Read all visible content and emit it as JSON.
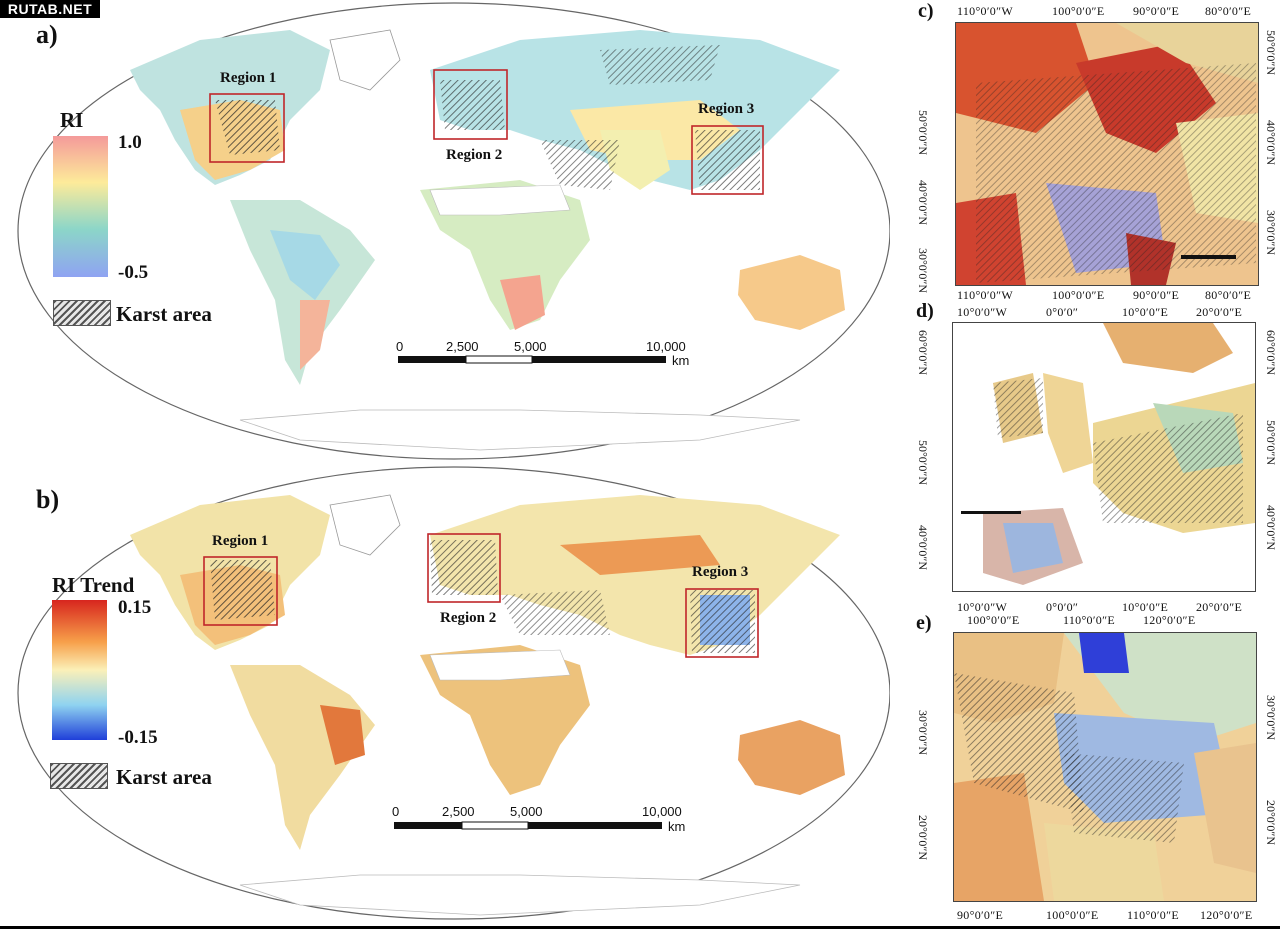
{
  "watermark": "RUTAB.NET",
  "panels": {
    "a": {
      "letter": "a)",
      "regions": [
        "Region 1",
        "Region 2",
        "Region 3"
      ],
      "legend": {
        "title": "RI",
        "max": "1.0",
        "min": "-0.5",
        "colors": [
          "#f49a9a",
          "#fdeb9a",
          "#8cd6c8",
          "#8fa3f2"
        ]
      },
      "karst_label": "Karst area",
      "scale": {
        "ticks": [
          "0",
          "2,500",
          "5,000",
          "10,000"
        ],
        "unit": "km"
      }
    },
    "b": {
      "letter": "b)",
      "regions": [
        "Region 1",
        "Region 2",
        "Region 3"
      ],
      "legend": {
        "title": "RI Trend",
        "max": "0.15",
        "min": "-0.15",
        "colors": [
          "#d7261e",
          "#f7a04a",
          "#fbf0b8",
          "#8fd3f0",
          "#1f3fd9"
        ]
      },
      "karst_label": "Karst area",
      "scale": {
        "ticks": [
          "0",
          "2,500",
          "5,000",
          "10,000"
        ],
        "unit": "km"
      }
    },
    "c": {
      "letter": "c)",
      "top_lon": [
        "110°0′0″W",
        "100°0′0″E",
        "90°0′0″E",
        "80°0′0″E"
      ],
      "bottom_lon": [
        "110°0′0″W",
        "100°0′0″E",
        "90°0′0″E",
        "80°0′0″E"
      ],
      "left_lat": [
        "50°0′0″N",
        "40°0′0″N",
        "30°0′0″N"
      ],
      "right_lat": [
        "50°0′0″N",
        "40°0′0″N",
        "30°0′0″N"
      ]
    },
    "d": {
      "letter": "d)",
      "top_lon": [
        "10°0′0″W",
        "0°0′0″",
        "10°0′0″E",
        "20°0′0″E"
      ],
      "bottom_lon": [
        "10°0′0″W",
        "0°0′0″",
        "10°0′0″E",
        "20°0′0″E"
      ],
      "left_lat": [
        "60°0′0″N",
        "50°0′0″N",
        "40°0′0″N"
      ],
      "right_lat": [
        "60°0′0″N",
        "50°0′0″N",
        "40°0′0″N"
      ]
    },
    "e": {
      "letter": "e)",
      "top_lon": [
        "100°0′0″E",
        "110°0′0″E",
        "120°0′0″E"
      ],
      "bottom_lon": [
        "90°0′0″E",
        "100°0′0″E",
        "110°0′0″E",
        "120°0′0″E"
      ],
      "left_lat": [
        "30°0′0″N",
        "20°0′0″N"
      ],
      "right_lat": [
        "30°0′0″N",
        "20°0′0″N"
      ]
    }
  }
}
